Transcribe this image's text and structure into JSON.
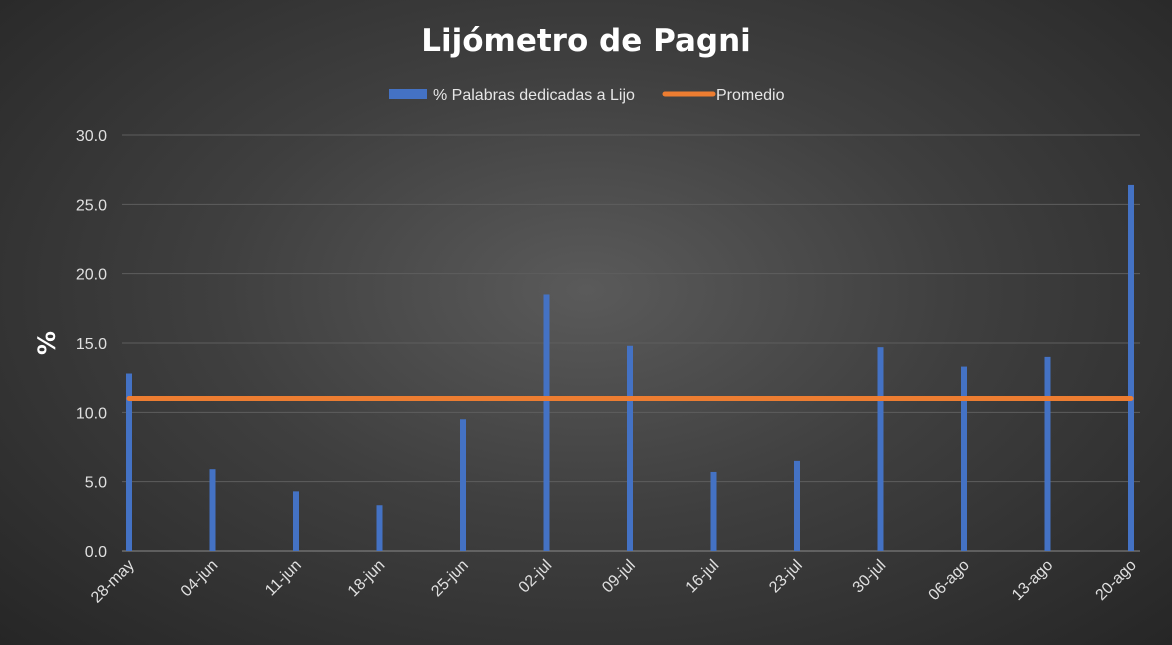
{
  "chart_data": {
    "type": "bar",
    "title": "Lijómetro de Pagni",
    "ylabel": "%",
    "xlabel": "",
    "ylim": [
      0,
      30
    ],
    "yticks": [
      "0.0",
      "5.0",
      "10.0",
      "15.0",
      "20.0",
      "25.0",
      "30.0"
    ],
    "grid": true,
    "legend_position": "top",
    "categories": [
      "28-may",
      "04-jun",
      "11-jun",
      "18-jun",
      "25-jun",
      "02-jul",
      "09-jul",
      "16-jul",
      "23-jul",
      "30-jul",
      "06-ago",
      "13-ago",
      "20-ago"
    ],
    "series": [
      {
        "name": "% Palabras dedicadas a Lijo",
        "kind": "bar",
        "color": "#4472c4",
        "values": [
          12.8,
          5.9,
          4.3,
          3.3,
          9.5,
          18.5,
          14.8,
          5.7,
          6.5,
          14.7,
          13.3,
          14.0,
          26.4
        ]
      },
      {
        "name": "Promedio",
        "kind": "line",
        "color": "#ed7d31",
        "value": 11.0
      }
    ]
  }
}
